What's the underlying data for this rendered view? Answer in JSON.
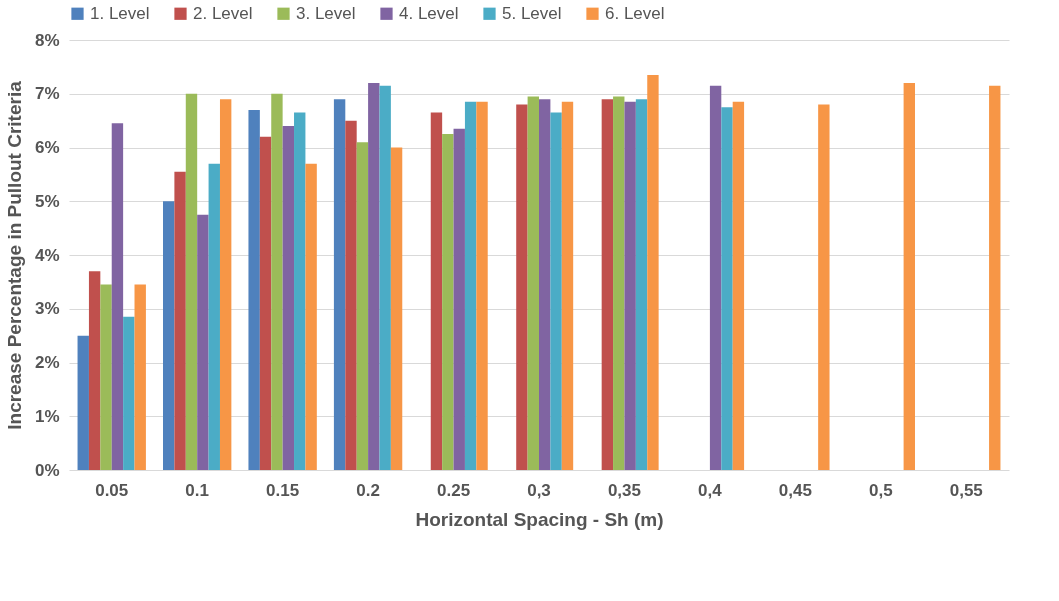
{
  "chart_data": {
    "type": "bar",
    "xlabel": "Horizontal Spacing - Sh (m)",
    "ylabel": "Increase Percentage in Pullout Criteria",
    "categories": [
      "0.05",
      "0.1",
      "0.15",
      "0.2",
      "0.25",
      "0,3",
      "0,35",
      "0,4",
      "0,45",
      "0,5",
      "0,55"
    ],
    "series": [
      {
        "name": "1. Level",
        "color": "#4f81bd",
        "values": [
          2.5,
          5.0,
          6.7,
          6.9,
          null,
          null,
          null,
          null,
          null,
          null,
          null
        ]
      },
      {
        "name": "2. Level",
        "color": "#c0504d",
        "values": [
          3.7,
          5.55,
          6.2,
          6.5,
          6.65,
          6.8,
          6.9,
          null,
          null,
          null,
          null
        ]
      },
      {
        "name": "3. Level",
        "color": "#9bbb59",
        "values": [
          3.45,
          7.0,
          7.0,
          6.1,
          6.25,
          6.95,
          6.95,
          null,
          null,
          null,
          null
        ]
      },
      {
        "name": "4. Level",
        "color": "#8064a2",
        "values": [
          6.45,
          4.75,
          6.4,
          7.2,
          6.35,
          6.9,
          6.85,
          7.15,
          null,
          null,
          null
        ]
      },
      {
        "name": "5. Level",
        "color": "#4bacc6",
        "values": [
          2.85,
          5.7,
          6.65,
          7.15,
          6.85,
          6.65,
          6.9,
          6.75,
          null,
          null,
          null
        ]
      },
      {
        "name": "6. Level",
        "color": "#f79646",
        "values": [
          3.45,
          6.9,
          5.7,
          6.0,
          6.85,
          6.85,
          7.35,
          6.85,
          6.8,
          7.2,
          7.15
        ]
      }
    ],
    "ylim": [
      0,
      8
    ],
    "yticks": [
      {
        "value": 0,
        "label": "0%"
      },
      {
        "value": 1,
        "label": "1%"
      },
      {
        "value": 2,
        "label": "2%"
      },
      {
        "value": 3,
        "label": "3%"
      },
      {
        "value": 4,
        "label": "4%"
      },
      {
        "value": 5,
        "label": "5%"
      },
      {
        "value": 6,
        "label": "6%"
      },
      {
        "value": 7,
        "label": "7%"
      },
      {
        "value": 8,
        "label": "8%"
      }
    ],
    "grid": "y",
    "legend": "top"
  }
}
